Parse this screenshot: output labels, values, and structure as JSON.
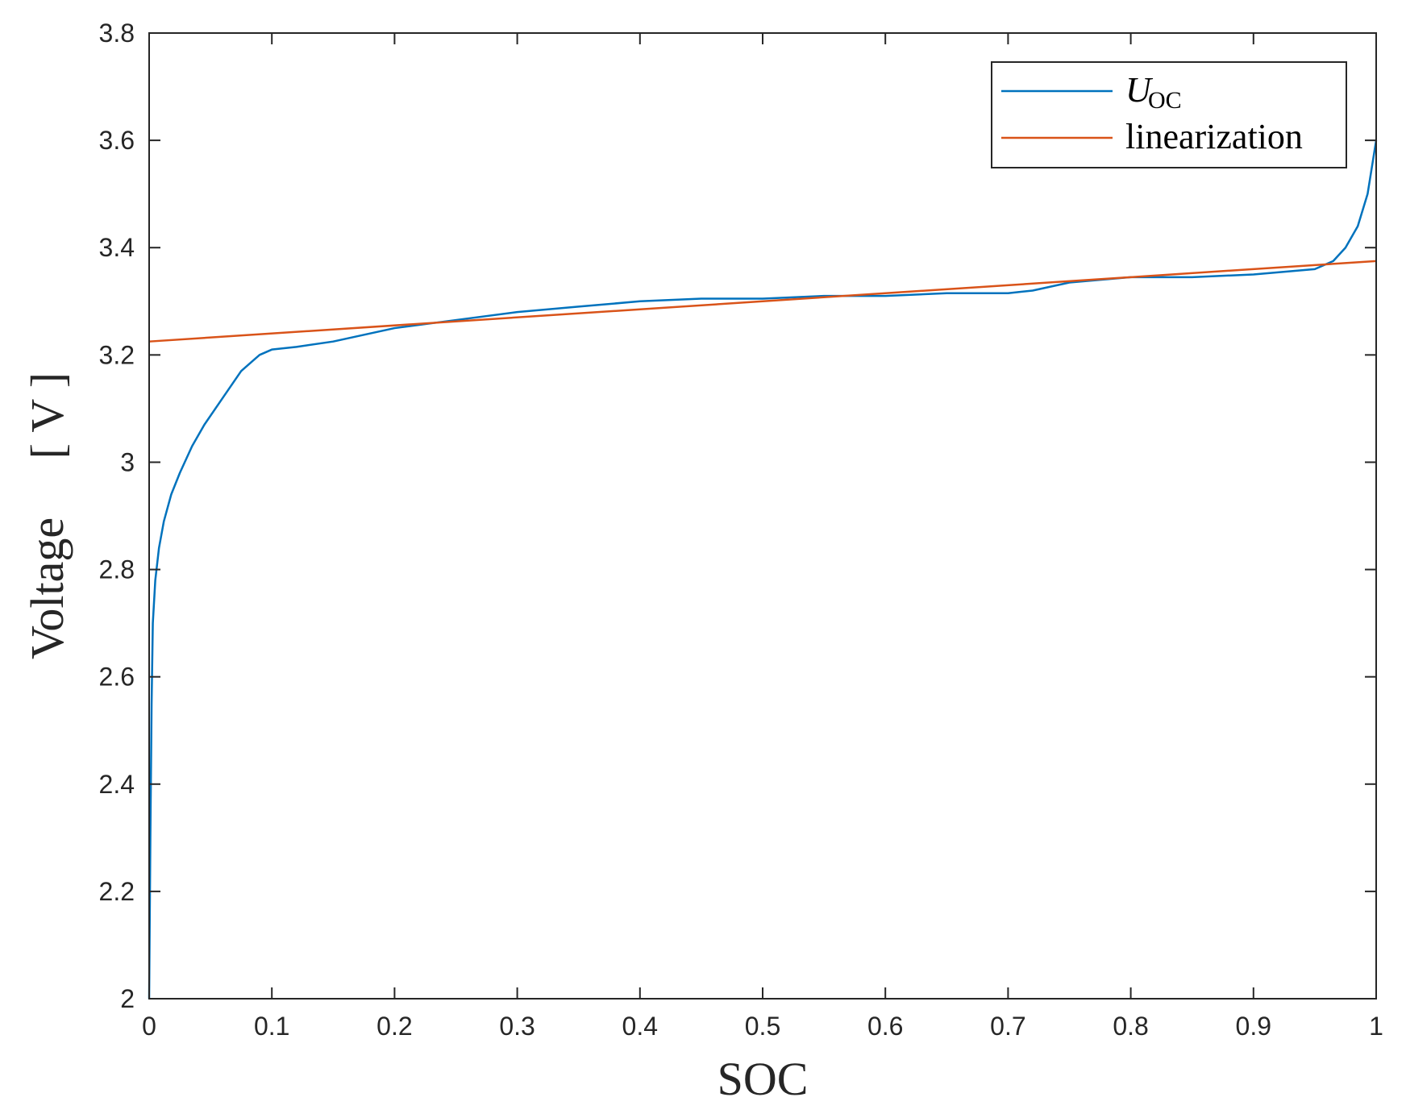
{
  "chart_data": {
    "type": "line",
    "title": "",
    "xlabel": "SOC",
    "ylabel": "Voltage 　[ V ]",
    "xlim": [
      0,
      1
    ],
    "ylim": [
      2,
      3.8
    ],
    "grid": false,
    "legend_position": "top-right",
    "x_ticks": [
      "0",
      "0.1",
      "0.2",
      "0.3",
      "0.4",
      "0.5",
      "0.6",
      "0.7",
      "0.8",
      "0.9",
      "1"
    ],
    "y_ticks": [
      "2",
      "2.2",
      "2.4",
      "2.6",
      "2.8",
      "3",
      "3.2",
      "3.4",
      "3.6",
      "3.8"
    ],
    "legend": {
      "uoc_main": "U",
      "uoc_sub": "OC",
      "linearization": "linearization"
    },
    "series": [
      {
        "name": "U_OC",
        "color": "#0072BD",
        "x": [
          0,
          0.001,
          0.002,
          0.003,
          0.005,
          0.008,
          0.012,
          0.018,
          0.025,
          0.035,
          0.045,
          0.06,
          0.075,
          0.085,
          0.09,
          0.1,
          0.12,
          0.15,
          0.2,
          0.25,
          0.3,
          0.35,
          0.4,
          0.45,
          0.5,
          0.55,
          0.6,
          0.65,
          0.7,
          0.72,
          0.75,
          0.8,
          0.85,
          0.9,
          0.95,
          0.965,
          0.975,
          0.985,
          0.993,
          1.0
        ],
        "y": [
          2.0,
          2.3,
          2.55,
          2.7,
          2.78,
          2.84,
          2.89,
          2.94,
          2.98,
          3.03,
          3.07,
          3.12,
          3.17,
          3.19,
          3.2,
          3.21,
          3.215,
          3.225,
          3.25,
          3.265,
          3.28,
          3.29,
          3.3,
          3.305,
          3.305,
          3.31,
          3.31,
          3.315,
          3.315,
          3.32,
          3.335,
          3.345,
          3.345,
          3.35,
          3.36,
          3.375,
          3.4,
          3.44,
          3.5,
          3.6
        ]
      },
      {
        "name": "linearization",
        "color": "#D95319",
        "x": [
          0,
          1
        ],
        "y": [
          3.225,
          3.375
        ]
      }
    ]
  }
}
